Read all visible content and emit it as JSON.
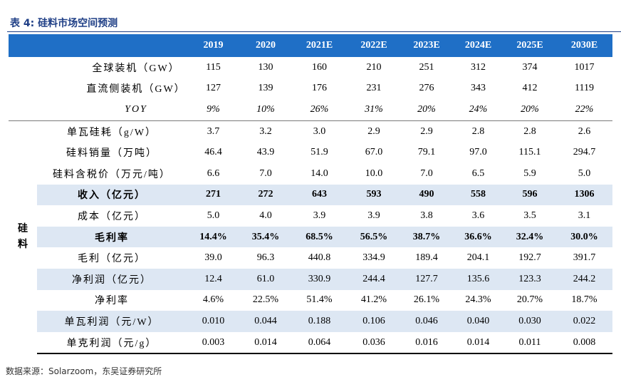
{
  "title": "表 4:  硅料市场空间预测",
  "columns": [
    "2019",
    "2020",
    "2021E",
    "2022E",
    "2023E",
    "2024E",
    "2025E",
    "2030E"
  ],
  "group_label": "硅\n料",
  "rows": [
    {
      "label": "全球装机（GW）",
      "values": [
        "115",
        "130",
        "160",
        "210",
        "251",
        "312",
        "374",
        "1017"
      ]
    },
    {
      "label": "直流侧装机（GW）",
      "values": [
        "127",
        "139",
        "176",
        "231",
        "276",
        "343",
        "412",
        "1119"
      ]
    },
    {
      "label": "YOY",
      "values": [
        "9%",
        "10%",
        "26%",
        "31%",
        "20%",
        "24%",
        "20%",
        "22%"
      ]
    },
    {
      "label": "单瓦硅耗（g/W）",
      "values": [
        "3.7",
        "3.2",
        "3.0",
        "2.9",
        "2.9",
        "2.8",
        "2.8",
        "2.6"
      ]
    },
    {
      "label": "硅料销量（万吨）",
      "values": [
        "46.4",
        "43.9",
        "51.9",
        "67.0",
        "79.1",
        "97.0",
        "115.1",
        "294.7"
      ]
    },
    {
      "label": "硅料含税价（万元/吨）",
      "values": [
        "6.6",
        "7.0",
        "14.0",
        "10.0",
        "7.0",
        "6.5",
        "5.9",
        "5.0"
      ]
    },
    {
      "label": "收入（亿元）",
      "values": [
        "271",
        "272",
        "643",
        "593",
        "490",
        "558",
        "596",
        "1306"
      ]
    },
    {
      "label": "成本（亿元）",
      "values": [
        "5.0",
        "4.0",
        "3.9",
        "3.9",
        "3.8",
        "3.6",
        "3.5",
        "3.1"
      ]
    },
    {
      "label": "毛利率",
      "values": [
        "14.4%",
        "35.4%",
        "68.5%",
        "56.5%",
        "38.7%",
        "36.6%",
        "32.4%",
        "30.0%"
      ]
    },
    {
      "label": "毛利（亿元）",
      "values": [
        "39.0",
        "96.3",
        "440.8",
        "334.9",
        "189.4",
        "204.1",
        "192.7",
        "391.7"
      ]
    },
    {
      "label": "净利润（亿元）",
      "values": [
        "12.4",
        "61.0",
        "330.9",
        "244.4",
        "127.7",
        "135.6",
        "123.3",
        "244.2"
      ]
    },
    {
      "label": "净利率",
      "values": [
        "4.6%",
        "22.5%",
        "51.4%",
        "41.2%",
        "26.1%",
        "24.3%",
        "20.7%",
        "18.7%"
      ]
    },
    {
      "label": "单瓦利润（元/W）",
      "values": [
        "0.010",
        "0.044",
        "0.188",
        "0.106",
        "0.046",
        "0.040",
        "0.030",
        "0.022"
      ]
    },
    {
      "label": "单克利润（元/g）",
      "values": [
        "0.003",
        "0.014",
        "0.064",
        "0.036",
        "0.016",
        "0.014",
        "0.011",
        "0.008"
      ]
    }
  ],
  "source": "数据来源：Solarzoom，东吴证券研究所"
}
